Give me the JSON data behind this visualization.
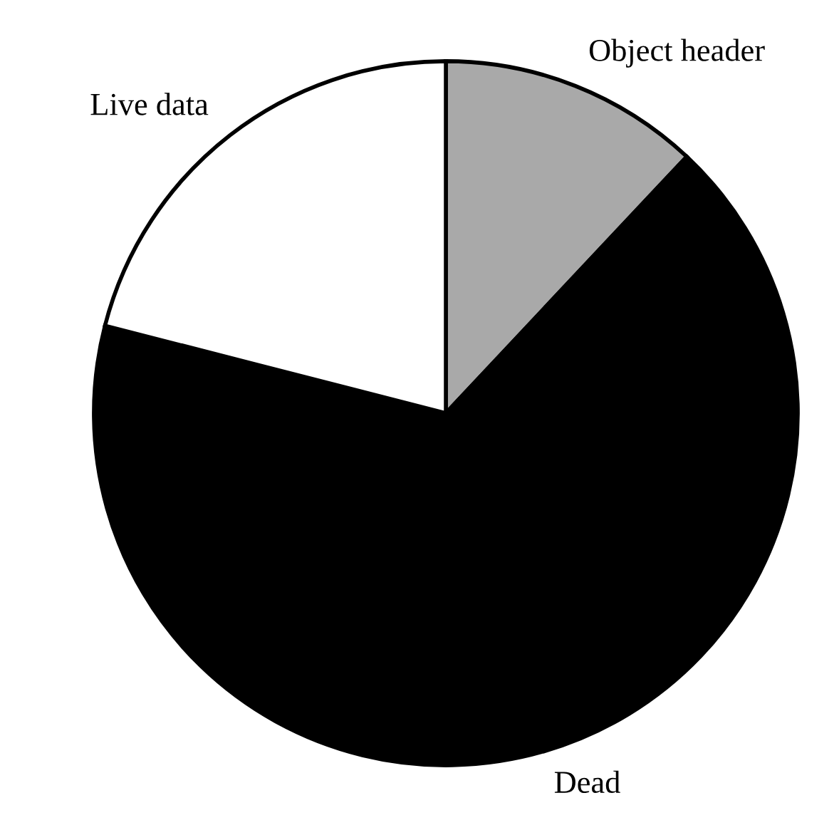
{
  "chart_data": {
    "type": "pie",
    "categories": [
      "Object header",
      "Dead",
      "Live data"
    ],
    "values": [
      12,
      67,
      21
    ],
    "colors": [
      "#a9a9a9",
      "#000000",
      "#ffffff"
    ],
    "legend": false
  }
}
